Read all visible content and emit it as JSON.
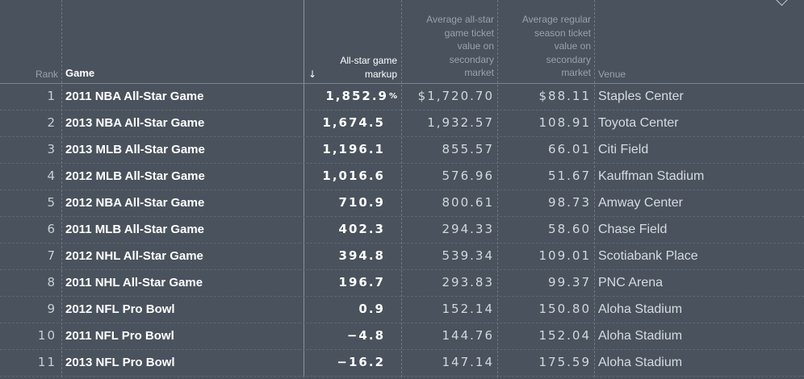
{
  "headers": {
    "rank": "Rank",
    "game": "Game",
    "markup": [
      "All-star game",
      "markup"
    ],
    "allstar_price": [
      "Average all-star",
      "game ticket",
      "value on",
      "secondary",
      "market"
    ],
    "regular_price": [
      "Average regular",
      "season ticket",
      "value on",
      "secondary",
      "market"
    ],
    "venue": "Venue",
    "sort_icon": "down-arrow-icon",
    "corner_icon": "chevron-down-icon"
  },
  "chart_data": {
    "type": "table",
    "columns": [
      "Rank",
      "Game",
      "All-star game markup",
      "Average all-star game ticket value on secondary market",
      "Average regular season ticket value on secondary market",
      "Venue"
    ],
    "sorted_by": "All-star game markup",
    "sort_direction": "descending",
    "rows": [
      {
        "rank": "1",
        "game": "2011 NBA All-Star Game",
        "markup": "1,852.9",
        "markup_suffix": "%",
        "allstar": "$1,720.70",
        "regular": "$88.11",
        "venue": "Staples Center"
      },
      {
        "rank": "2",
        "game": "2013 NBA All-Star Game",
        "markup": "1,674.5",
        "markup_suffix": "",
        "allstar": "1,932.57",
        "regular": "108.91",
        "venue": "Toyota Center"
      },
      {
        "rank": "3",
        "game": "2013 MLB All-Star Game",
        "markup": "1,196.1",
        "markup_suffix": "",
        "allstar": "855.57",
        "regular": "66.01",
        "venue": "Citi Field"
      },
      {
        "rank": "4",
        "game": "2012 MLB All-Star Game",
        "markup": "1,016.6",
        "markup_suffix": "",
        "allstar": "576.96",
        "regular": "51.67",
        "venue": "Kauffman Stadium"
      },
      {
        "rank": "5",
        "game": "2012 NBA All-Star Game",
        "markup": "710.9",
        "markup_suffix": "",
        "allstar": "800.61",
        "regular": "98.73",
        "venue": "Amway Center"
      },
      {
        "rank": "6",
        "game": "2011 MLB All-Star Game",
        "markup": "402.3",
        "markup_suffix": "",
        "allstar": "294.33",
        "regular": "58.60",
        "venue": "Chase Field"
      },
      {
        "rank": "7",
        "game": "2012 NHL All-Star Game",
        "markup": "394.8",
        "markup_suffix": "",
        "allstar": "539.34",
        "regular": "109.01",
        "venue": "Scotiabank Place"
      },
      {
        "rank": "8",
        "game": "2011 NHL All-Star Game",
        "markup": "196.7",
        "markup_suffix": "",
        "allstar": "293.83",
        "regular": "99.37",
        "venue": "PNC Arena"
      },
      {
        "rank": "9",
        "game": "2012 NFL Pro Bowl",
        "markup": "0.9",
        "markup_suffix": "",
        "allstar": "152.14",
        "regular": "150.80",
        "venue": "Aloha Stadium"
      },
      {
        "rank": "10",
        "game": "2011 NFL Pro Bowl",
        "markup": "−4.8",
        "markup_suffix": "",
        "allstar": "144.76",
        "regular": "152.04",
        "venue": "Aloha Stadium"
      },
      {
        "rank": "11",
        "game": "2013 NFL Pro Bowl",
        "markup": "−16.2",
        "markup_suffix": "",
        "allstar": "147.14",
        "regular": "175.59",
        "venue": "Aloha Stadium"
      }
    ]
  }
}
